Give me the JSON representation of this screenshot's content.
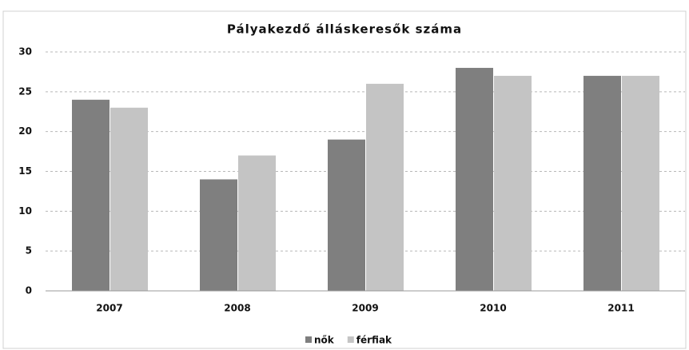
{
  "chart_data": {
    "type": "bar",
    "title": "Pályakezdő álláskeresők száma",
    "categories": [
      "2007",
      "2008",
      "2009",
      "2010",
      "2011"
    ],
    "series": [
      {
        "name": "nők",
        "color": "#7f7f7f",
        "values": [
          24,
          14,
          19,
          28,
          27
        ]
      },
      {
        "name": "férfiak",
        "color": "#c4c4c4",
        "values": [
          23,
          17,
          26,
          27,
          27
        ]
      }
    ],
    "ylim": [
      0,
      30
    ],
    "yticks": [
      0,
      5,
      10,
      15,
      20,
      25,
      30
    ],
    "grid": true,
    "legend": "bottom"
  }
}
